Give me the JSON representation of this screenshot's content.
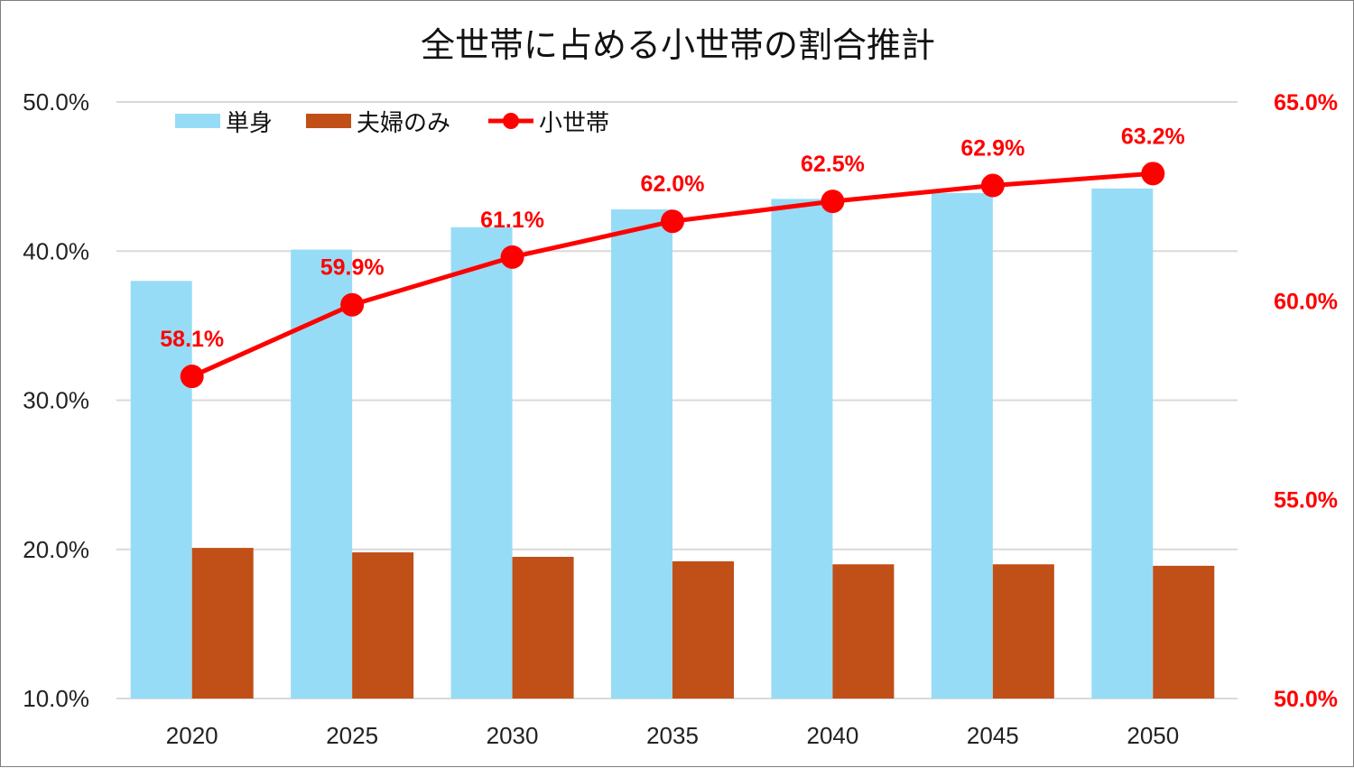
{
  "chart_data": {
    "type": "bar",
    "title": "全世帯に占める小世帯の割合推計",
    "categories": [
      "2020",
      "2025",
      "2030",
      "2035",
      "2040",
      "2045",
      "2050"
    ],
    "xlabel": "",
    "ylabel": "",
    "ylim": [
      10.0,
      50.0
    ],
    "y2lim": [
      50.0,
      65.0
    ],
    "yticks": [
      "10.0%",
      "20.0%",
      "30.0%",
      "40.0%",
      "50.0%"
    ],
    "y2ticks": [
      "50.0%",
      "55.0%",
      "60.0%",
      "65.0%"
    ],
    "ytick_values": [
      10,
      20,
      30,
      40,
      50
    ],
    "y2tick_values": [
      50,
      55,
      60,
      65
    ],
    "grid": true,
    "legend_position": "top-left",
    "series": [
      {
        "name": "単身",
        "type": "bar",
        "axis": "left",
        "color": "#97dcf6",
        "values": [
          38.0,
          40.1,
          41.6,
          42.8,
          43.5,
          43.9,
          44.2
        ]
      },
      {
        "name": "夫婦のみ",
        "type": "bar",
        "axis": "left",
        "color": "#c05017",
        "values": [
          20.1,
          19.8,
          19.5,
          19.2,
          19.0,
          19.0,
          18.9
        ]
      },
      {
        "name": "小世帯",
        "type": "line",
        "axis": "right",
        "color": "#ff0000",
        "values": [
          58.1,
          59.9,
          61.1,
          62.0,
          62.5,
          62.9,
          63.2
        ],
        "data_labels": [
          "58.1%",
          "59.9%",
          "61.1%",
          "62.0%",
          "62.5%",
          "62.9%",
          "63.2%"
        ]
      }
    ]
  }
}
